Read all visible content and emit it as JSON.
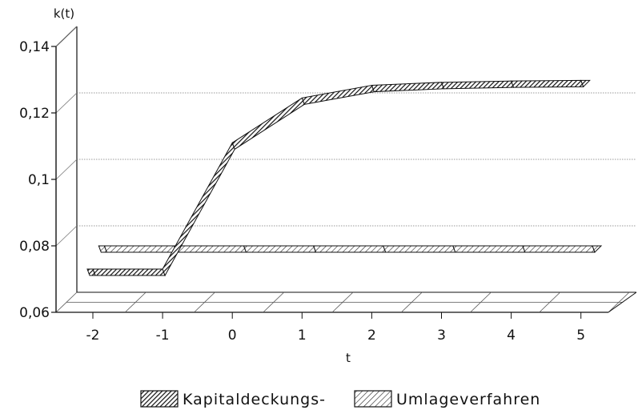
{
  "chart_data": {
    "type": "line",
    "title": "",
    "ylabel": "k(t)",
    "xlabel": "t",
    "x": [
      -2,
      -1,
      0,
      1,
      2,
      3,
      4,
      5
    ],
    "ylim": [
      0.06,
      0.14
    ],
    "yticks": [
      0.06,
      0.08,
      0.1,
      0.12,
      0.14
    ],
    "ytick_labels": [
      "0,06",
      "0,08",
      "0,1",
      "0,12",
      "0,14"
    ],
    "xtick_labels": [
      "-2",
      "-1",
      "0",
      "1",
      "2",
      "3",
      "4",
      "5"
    ],
    "grid": true,
    "legend_position": "bottom",
    "series": [
      {
        "name": "Kapitaldeckungs-",
        "pattern": "dense-diagonal-hatch",
        "values": [
          0.073,
          0.073,
          0.111,
          0.1245,
          0.1283,
          0.1292,
          0.1296,
          0.1298
        ]
      },
      {
        "name": "Umlageverfahren",
        "pattern": "sparse-diagonal-hatch",
        "values": [
          0.0767,
          0.0767,
          0.0767,
          0.0767,
          0.0767,
          0.0767,
          0.0767,
          0.0767
        ]
      }
    ]
  }
}
